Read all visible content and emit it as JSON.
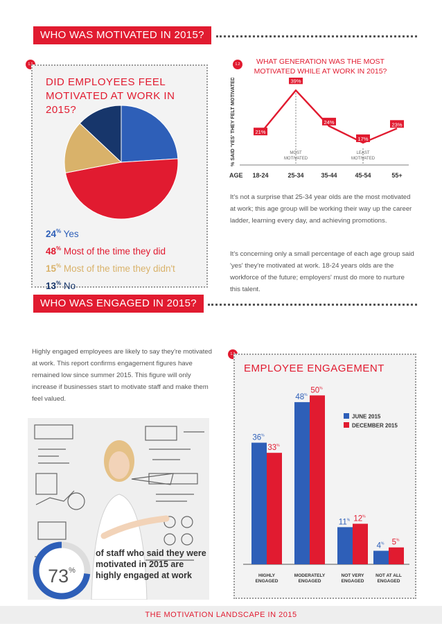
{
  "sections": {
    "motivated_header": "WHO WAS MOTIVATED IN 2015?",
    "engaged_header": "WHO WAS ENGAGED IN 2015?"
  },
  "badges": {
    "b11": "1.1",
    "b12": "1.2",
    "b13": "1.3"
  },
  "pie": {
    "title_line1": "DID EMPLOYEES FEEL",
    "title_line2": "MOTIVATED AT WORK IN 2015?",
    "legend": [
      {
        "pct": "24",
        "sign": "%",
        "label": "Yes"
      },
      {
        "pct": "48",
        "sign": "%",
        "label": "Most of the time they did"
      },
      {
        "pct": "15",
        "sign": "%",
        "label": "Most of the time they didn't"
      },
      {
        "pct": "13",
        "sign": "%",
        "label": "No"
      }
    ]
  },
  "generation": {
    "title_line1": "WHAT GENERATION WAS THE MOST",
    "title_line2": "MOTIVATED WHILE AT WORK IN 2015?",
    "ylabel": "% SAID 'YES' THEY FELT MOTIVATED",
    "age_label": "AGE",
    "most_line1": "MOST",
    "most_line2": "MOTIVATED",
    "least_line1": "LEAST",
    "least_line2": "MOTIVATED"
  },
  "paragraphs": {
    "p1": "It's not a surprise that 25-34 year olds are the most motivated at work; this age group will be working their way up the career ladder, learning every day, and achieving promotions.",
    "p2": "It's concerning only a small percentage of each age group said 'yes' they're motivated at work. 18-24 years olds are the workforce of the future; employers' must do more to nurture this talent.",
    "p3": "Highly engaged employees are likely to say they're motivated at work. This report confirms engagement figures have remained low since summer 2015. This figure will only increase if businesses start to motivate staff and make them feel valued."
  },
  "stat": {
    "value": "73",
    "sign": "%",
    "text_line1": "of staff who said they were",
    "text_line2": "motivated in 2015 are",
    "text_line3": "highly engaged at work",
    "fraction": 0.73
  },
  "engagement_title": "EMPLOYEE ENGAGEMENT",
  "footer": "THE MOTIVATION LANDSCAPE IN 2015",
  "colors": {
    "red": "#e11b30",
    "blue": "#2e5fb8",
    "tan": "#d9b26a",
    "navy": "#17366b"
  },
  "chart_data": [
    {
      "type": "pie",
      "labels": [
        "Yes",
        "Most of the time they did",
        "Most of the time they didn't",
        "No"
      ],
      "values": [
        24,
        48,
        15,
        13
      ],
      "colors": [
        "#2e5fb8",
        "#e11b30",
        "#d9b26a",
        "#17366b"
      ]
    },
    {
      "type": "line",
      "categories": [
        "18-24",
        "25-34",
        "35-44",
        "45-54",
        "55+"
      ],
      "series": [
        {
          "values": [
            21,
            39,
            24,
            17,
            23
          ]
        }
      ],
      "value_labels": [
        "21%",
        "39%",
        "24%",
        "17%",
        "23%"
      ],
      "ylim": [
        10,
        42
      ]
    },
    {
      "type": "bar",
      "categories": [
        "HIGHLY ENGAGED",
        "MODERATELY ENGAGED",
        "NOT VERY ENGAGED",
        "NOT AT ALL ENGAGED"
      ],
      "category_lines": [
        [
          "HIGHLY",
          "ENGAGED"
        ],
        [
          "MODERATELY",
          "ENGAGED"
        ],
        [
          "NOT VERY",
          "ENGAGED"
        ],
        [
          "NOT AT ALL",
          "ENGAGED"
        ]
      ],
      "series": [
        {
          "name": "JUNE 2015",
          "values": [
            36,
            48,
            11,
            4
          ],
          "color": "#2e5fb8"
        },
        {
          "name": "DECEMBER 2015",
          "values": [
            33,
            50,
            12,
            5
          ],
          "color": "#e11b30"
        }
      ],
      "ylim": [
        0,
        55
      ]
    }
  ]
}
